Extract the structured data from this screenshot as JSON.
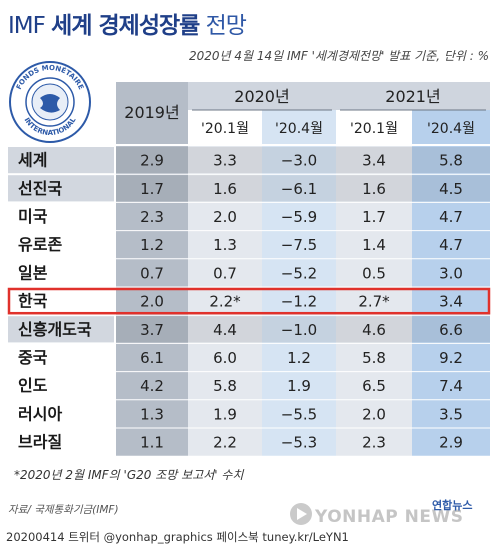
{
  "header": {
    "title_prefix": "IMF",
    "title_main": "세계 경제성장률",
    "title_suffix": "전망",
    "subtitle": "2020년 4월 14일 IMF '세계경제전망' 발표 기준, 단위 : %"
  },
  "colors": {
    "header_bg": "#cfd5de",
    "col_2019": "#b5bdc8",
    "col_jan": "#e4e8ee",
    "col_apr": "#d6e4f3",
    "col_2021apr": "#b7d0ec",
    "country_bg": "#d2d7df",
    "highlight": "#e0312b",
    "title": "#1f3f88"
  },
  "chart_data": {
    "type": "table",
    "year_headers": [
      "2019년",
      "2020년",
      "2021년"
    ],
    "sub_headers": [
      "'20.1월",
      "'20.4월",
      "'20.1월",
      "'20.4월"
    ],
    "columns": [
      "2019년",
      "2020년 '20.1월",
      "2020년 '20.4월",
      "2021년 '20.1월",
      "2021년 '20.4월"
    ],
    "rows": [
      {
        "country": "세계",
        "values": [
          "2.9",
          "3.3",
          "−3.0",
          "3.4",
          "5.8"
        ]
      },
      {
        "country": "선진국",
        "values": [
          "1.7",
          "1.6",
          "−6.1",
          "1.6",
          "4.5"
        ]
      },
      {
        "country": "미국",
        "values": [
          "2.3",
          "2.0",
          "−5.9",
          "1.7",
          "4.7"
        ]
      },
      {
        "country": "유로존",
        "values": [
          "1.2",
          "1.3",
          "−7.5",
          "1.4",
          "4.7"
        ]
      },
      {
        "country": "일본",
        "values": [
          "0.7",
          "0.7",
          "−5.2",
          "0.5",
          "3.0"
        ]
      },
      {
        "country": "한국",
        "values": [
          "2.0",
          "2.2*",
          "−1.2",
          "2.7*",
          "3.4"
        ],
        "highlight": true
      },
      {
        "country": "신흥개도국",
        "values": [
          "3.7",
          "4.4",
          "−1.0",
          "4.6",
          "6.6"
        ]
      },
      {
        "country": "중국",
        "values": [
          "6.1",
          "6.0",
          "1.2",
          "5.8",
          "9.2"
        ]
      },
      {
        "country": "인도",
        "values": [
          "4.2",
          "5.8",
          "1.9",
          "6.5",
          "7.4"
        ]
      },
      {
        "country": "러시아",
        "values": [
          "1.3",
          "1.9",
          "−5.5",
          "2.0",
          "3.5"
        ]
      },
      {
        "country": "브라질",
        "values": [
          "1.1",
          "2.2",
          "−5.3",
          "2.3",
          "2.9"
        ]
      }
    ]
  },
  "footer": {
    "footnote": "*2020년 2월 IMF의 'G20 조망 보고서' 수치",
    "source": "자료/ 국제통화기금(IMF)",
    "credit": "20200414  트위터 @yonhap_graphics  페이스북 tuney.kr/LeYN1",
    "agency": "연합뉴스",
    "watermark": "YONHAP NEWS"
  },
  "logo": {
    "text_top": "FONDS MONÉTAIRE",
    "text_bottom": "INTERNATIONAL"
  }
}
